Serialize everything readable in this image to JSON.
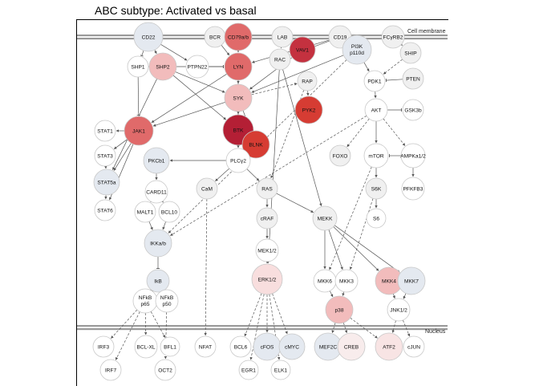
{
  "title": "ABC subtype: Activated vs basal",
  "compartments": {
    "membrane": "Cell membrane",
    "nucleus": "Nucleus"
  },
  "colors": {
    "node_default": "#f0f0f0",
    "node_stroke": "#c8c8c8",
    "edge": "#555555",
    "membrane": "#9a9a9a",
    "up_dark": "#b41f35",
    "up_mid": "#e06a6a",
    "up_light": "#f2bcbc",
    "down_light": "#e4e9f0"
  },
  "nodes": [
    {
      "id": "CD22",
      "label": "CD22",
      "fill": "#e4e9f0"
    },
    {
      "id": "BCR",
      "label": "BCR",
      "fill": "#f0f0f0"
    },
    {
      "id": "CD79ab",
      "label": "CD79a/b",
      "fill": "#e06a6a"
    },
    {
      "id": "LAB",
      "label": "LAB",
      "fill": "#f0f0f0"
    },
    {
      "id": "VAV1",
      "label": "VAV1",
      "fill": "#c4313f"
    },
    {
      "id": "CD19",
      "label": "CD19",
      "fill": "#f0f0f0"
    },
    {
      "id": "PI3K",
      "label": "PI3K\np110d",
      "fill": "#e4e9f0"
    },
    {
      "id": "FCGRB2",
      "label": "FCγRB2",
      "fill": "#f0f0f0"
    },
    {
      "id": "SHP1",
      "label": "SHP1",
      "fill": "#ffffff"
    },
    {
      "id": "SHP2",
      "label": "SHP2",
      "fill": "#f2bcbc"
    },
    {
      "id": "PTPN22",
      "label": "PTPN22",
      "fill": "#ffffff"
    },
    {
      "id": "LYN",
      "label": "LYN",
      "fill": "#e06a6a"
    },
    {
      "id": "RAC",
      "label": "RAC",
      "fill": "#f0f0f0"
    },
    {
      "id": "SHIP",
      "label": "SHIP",
      "fill": "#f0f0f0"
    },
    {
      "id": "RAP",
      "label": "RAP",
      "fill": "#f0f0f0"
    },
    {
      "id": "PDK1",
      "label": "PDK1",
      "fill": "#ffffff"
    },
    {
      "id": "PTEN",
      "label": "PTEN",
      "fill": "#f0f0f0"
    },
    {
      "id": "SYK",
      "label": "SYK",
      "fill": "#f2bcbc"
    },
    {
      "id": "PYK2",
      "label": "PYK2",
      "fill": "#d63c33"
    },
    {
      "id": "AKT",
      "label": "AKT",
      "fill": "#ffffff"
    },
    {
      "id": "GSK3b",
      "label": "GSK3b",
      "fill": "#ffffff"
    },
    {
      "id": "STAT1",
      "label": "STAT1",
      "fill": "#ffffff"
    },
    {
      "id": "JAK1",
      "label": "JAK1",
      "fill": "#e06a6a"
    },
    {
      "id": "BTK",
      "label": "BTK",
      "fill": "#b41f35"
    },
    {
      "id": "BLNK",
      "label": "BLNK",
      "fill": "#d63c33"
    },
    {
      "id": "STAT3",
      "label": "STAT3",
      "fill": "#ffffff"
    },
    {
      "id": "PKCb1",
      "label": "PKCb1",
      "fill": "#e4e9f0"
    },
    {
      "id": "PLCy2",
      "label": "PLCγ2",
      "fill": "#ffffff"
    },
    {
      "id": "FOXO",
      "label": "FOXO",
      "fill": "#f0f0f0"
    },
    {
      "id": "mTOR",
      "label": "mTOR",
      "fill": "#ffffff"
    },
    {
      "id": "AMPKa12",
      "label": "AMPKa1/2",
      "fill": "#ffffff"
    },
    {
      "id": "STAT5a",
      "label": "STAT5a",
      "fill": "#e4e9f0"
    },
    {
      "id": "CARD11",
      "label": "CARD11",
      "fill": "#ffffff"
    },
    {
      "id": "CaM",
      "label": "CaM",
      "fill": "#f0f0f0"
    },
    {
      "id": "RAS",
      "label": "RAS",
      "fill": "#f0f0f0"
    },
    {
      "id": "S6K",
      "label": "S6K",
      "fill": "#f0f0f0"
    },
    {
      "id": "PFKFB3",
      "label": "PFKFB3",
      "fill": "#ffffff"
    },
    {
      "id": "STAT6",
      "label": "STAT6",
      "fill": "#ffffff"
    },
    {
      "id": "MALT1",
      "label": "MALT1",
      "fill": "#ffffff"
    },
    {
      "id": "BCL10",
      "label": "BCL10",
      "fill": "#ffffff"
    },
    {
      "id": "cRAF",
      "label": "cRAF",
      "fill": "#f0f0f0"
    },
    {
      "id": "MEKK",
      "label": "MEKK",
      "fill": "#f0f0f0"
    },
    {
      "id": "S6",
      "label": "S6",
      "fill": "#ffffff"
    },
    {
      "id": "IKKab",
      "label": "IKKa/b",
      "fill": "#e4e9f0"
    },
    {
      "id": "MEK12",
      "label": "MEK1/2",
      "fill": "#ffffff"
    },
    {
      "id": "ERK12",
      "label": "ERK1/2",
      "fill": "#f8dede"
    },
    {
      "id": "MKK6",
      "label": "MKK6",
      "fill": "#ffffff"
    },
    {
      "id": "MKK3",
      "label": "MKK3",
      "fill": "#ffffff"
    },
    {
      "id": "MKK4",
      "label": "MKK4",
      "fill": "#f2bcbc"
    },
    {
      "id": "MKK7",
      "label": "MKK7",
      "fill": "#e4e9f0"
    },
    {
      "id": "IkB",
      "label": "IkB",
      "fill": "#e4e9f0"
    },
    {
      "id": "NFkBp65",
      "label": "NFkB\np65",
      "fill": "#ffffff"
    },
    {
      "id": "NFkBp50",
      "label": "NFkB\np50",
      "fill": "#ffffff"
    },
    {
      "id": "p38",
      "label": "p38",
      "fill": "#f2bcbc"
    },
    {
      "id": "JNK12",
      "label": "JNK1/2",
      "fill": "#ffffff"
    },
    {
      "id": "IRF3",
      "label": "IRF3",
      "fill": "#ffffff"
    },
    {
      "id": "BCLXL",
      "label": "BCL-XL",
      "fill": "#ffffff"
    },
    {
      "id": "BFL1",
      "label": "BFL1",
      "fill": "#ffffff"
    },
    {
      "id": "NFAT",
      "label": "NFAT",
      "fill": "#ffffff"
    },
    {
      "id": "BCL6",
      "label": "BCL6",
      "fill": "#ffffff"
    },
    {
      "id": "cFOS",
      "label": "cFOS",
      "fill": "#e4e9f0"
    },
    {
      "id": "cMYC",
      "label": "cMYC",
      "fill": "#e4e9f0"
    },
    {
      "id": "MEF2C",
      "label": "MEF2C",
      "fill": "#e4e9f0"
    },
    {
      "id": "CREB",
      "label": "CREB",
      "fill": "#f8ecec"
    },
    {
      "id": "ATF2",
      "label": "ATF2",
      "fill": "#f8e4e4"
    },
    {
      "id": "cJUN",
      "label": "cJUN",
      "fill": "#ffffff"
    },
    {
      "id": "IRF7",
      "label": "IRF7",
      "fill": "#ffffff"
    },
    {
      "id": "OCT2",
      "label": "OCT2",
      "fill": "#ffffff"
    },
    {
      "id": "EGR1",
      "label": "EGR1",
      "fill": "#ffffff"
    },
    {
      "id": "ELK1",
      "label": "ELK1",
      "fill": "#ffffff"
    }
  ],
  "edges": [
    [
      "CD22",
      "SHP1",
      "inhibit",
      "solid"
    ],
    [
      "CD22",
      "SHP2",
      "act",
      "solid"
    ],
    [
      "BCR",
      "LYN",
      "act",
      "solid"
    ],
    [
      "CD79ab",
      "LYN",
      "act",
      "solid"
    ],
    [
      "LYN",
      "SYK",
      "act",
      "solid"
    ],
    [
      "SYK",
      "BTK",
      "act",
      "solid"
    ],
    [
      "SYK",
      "BLNK",
      "act",
      "solid"
    ],
    [
      "BTK",
      "PLCy2",
      "act",
      "solid"
    ],
    [
      "BLNK",
      "PLCy2",
      "act",
      "solid"
    ],
    [
      "SHP1",
      "LYN",
      "inhibit",
      "solid"
    ],
    [
      "SHP1",
      "JAK1",
      "inhibit",
      "solid"
    ],
    [
      "SHP2",
      "SYK",
      "act",
      "solid"
    ],
    [
      "PTPN22",
      "LYN",
      "inhibit",
      "solid"
    ],
    [
      "LAB",
      "RAC",
      "act",
      "solid"
    ],
    [
      "VAV1",
      "RAC",
      "act",
      "solid"
    ],
    [
      "CD19",
      "PI3K",
      "act",
      "solid"
    ],
    [
      "PI3K",
      "PDK1",
      "act",
      "solid"
    ],
    [
      "FCGRB2",
      "SHIP",
      "act",
      "dashed"
    ],
    [
      "SHIP",
      "PDK1",
      "act",
      "dashed"
    ],
    [
      "PTEN",
      "PDK1",
      "inhibit",
      "solid"
    ],
    [
      "PDK1",
      "AKT",
      "act",
      "solid"
    ],
    [
      "AKT",
      "GSK3b",
      "inhibit",
      "solid"
    ],
    [
      "AKT",
      "FOXO",
      "act",
      "dashed"
    ],
    [
      "AKT",
      "mTOR",
      "act",
      "solid"
    ],
    [
      "AKT",
      "AMPKa12",
      "act",
      "dashed"
    ],
    [
      "AMPKa12",
      "mTOR",
      "inhibit",
      "solid"
    ],
    [
      "mTOR",
      "S6K",
      "act",
      "solid"
    ],
    [
      "S6K",
      "S6",
      "act",
      "solid"
    ],
    [
      "AMPKa12",
      "PFKFB3",
      "act",
      "solid"
    ],
    [
      "RAP",
      "PYK2",
      "act",
      "solid"
    ],
    [
      "JAK1",
      "STAT1",
      "act",
      "solid"
    ],
    [
      "JAK1",
      "STAT3",
      "act",
      "solid"
    ],
    [
      "JAK1",
      "STAT5a",
      "act",
      "solid"
    ],
    [
      "JAK1",
      "STAT6",
      "act",
      "solid"
    ],
    [
      "STAT3",
      "STAT5a",
      "act",
      "solid"
    ],
    [
      "STAT5a",
      "STAT6",
      "act",
      "solid"
    ],
    [
      "PLCy2",
      "PKCb1",
      "act",
      "solid"
    ],
    [
      "PLCy2",
      "CaM",
      "act",
      "solid"
    ],
    [
      "PLCy2",
      "RAS",
      "act",
      "solid"
    ],
    [
      "PKCb1",
      "CARD11",
      "act",
      "solid"
    ],
    [
      "CARD11",
      "MALT1",
      "act",
      "solid"
    ],
    [
      "CARD11",
      "BCL10",
      "act",
      "solid"
    ],
    [
      "MALT1",
      "IKKab",
      "act",
      "solid"
    ],
    [
      "BCL10",
      "IKKab",
      "act",
      "solid"
    ],
    [
      "IKKab",
      "IkB",
      "inhibit",
      "solid"
    ],
    [
      "IkB",
      "NFkBp65",
      "inhibit",
      "solid"
    ],
    [
      "IkB",
      "NFkBp50",
      "inhibit",
      "solid"
    ],
    [
      "NFkBp65",
      "IRF3",
      "act",
      "dashed"
    ],
    [
      "NFkBp65",
      "BCLXL",
      "act",
      "dashed"
    ],
    [
      "NFkBp65",
      "BFL1",
      "act",
      "dashed"
    ],
    [
      "NFkBp50",
      "OCT2",
      "act",
      "dashed"
    ],
    [
      "NFkBp65",
      "IRF7",
      "act",
      "dashed"
    ],
    [
      "CaM",
      "NFAT",
      "act",
      "dashed"
    ],
    [
      "RAS",
      "cRAF",
      "act",
      "solid"
    ],
    [
      "RAS",
      "MEKK",
      "act",
      "solid"
    ],
    [
      "cRAF",
      "MEK12",
      "act",
      "solid"
    ],
    [
      "MEK12",
      "ERK12",
      "act",
      "solid"
    ],
    [
      "ERK12",
      "BCL6",
      "act",
      "dashed"
    ],
    [
      "ERK12",
      "cFOS",
      "act",
      "dashed"
    ],
    [
      "ERK12",
      "cMYC",
      "act",
      "dashed"
    ],
    [
      "ERK12",
      "EGR1",
      "act",
      "dashed"
    ],
    [
      "ERK12",
      "ELK1",
      "act",
      "dashed"
    ],
    [
      "MEKK",
      "MKK6",
      "act",
      "solid"
    ],
    [
      "MEKK",
      "MKK3",
      "act",
      "solid"
    ],
    [
      "MEKK",
      "MKK4",
      "act",
      "solid"
    ],
    [
      "MEKK",
      "MKK7",
      "act",
      "solid"
    ],
    [
      "MKK6",
      "p38",
      "act",
      "solid"
    ],
    [
      "MKK3",
      "p38",
      "act",
      "solid"
    ],
    [
      "MKK4",
      "JNK12",
      "act",
      "solid"
    ],
    [
      "MKK7",
      "JNK12",
      "act",
      "solid"
    ],
    [
      "p38",
      "MEF2C",
      "act",
      "dashed"
    ],
    [
      "p38",
      "CREB",
      "act",
      "dashed"
    ],
    [
      "p38",
      "ATF2",
      "act",
      "dashed"
    ],
    [
      "JNK12",
      "ATF2",
      "act",
      "dashed"
    ],
    [
      "JNK12",
      "cJUN",
      "act",
      "dashed"
    ],
    [
      "PI3K",
      "IKKab",
      "act",
      "dashed"
    ],
    [
      "AKT",
      "IKKab",
      "act",
      "dashed"
    ],
    [
      "RAC",
      "ERK12",
      "act",
      "solid"
    ],
    [
      "RAC",
      "MEKK",
      "act",
      "solid"
    ],
    [
      "SYK",
      "JAK1",
      "act",
      "solid"
    ],
    [
      "LYN",
      "JAK1",
      "act",
      "solid"
    ],
    [
      "LYN",
      "PLCy2",
      "act",
      "solid"
    ],
    [
      "SYK",
      "RAP",
      "act",
      "dashed"
    ],
    [
      "RAP",
      "RAS",
      "act",
      "dashed"
    ],
    [
      "mTOR",
      "MKK6",
      "act",
      "dashed"
    ],
    [
      "S6K",
      "MKK3",
      "act",
      "dashed"
    ],
    [
      "SHP2",
      "STAT5a",
      "act",
      "solid"
    ],
    [
      "SHP2",
      "BTK",
      "act",
      "solid"
    ],
    [
      "CD22",
      "PTPN22",
      "act",
      "solid"
    ],
    [
      "CD19",
      "RAC",
      "act",
      "solid"
    ],
    [
      "VAV1",
      "SYK",
      "act",
      "solid"
    ],
    [
      "PI3K",
      "SYK",
      "act",
      "solid"
    ],
    [
      "CD19",
      "LYN",
      "act",
      "solid"
    ]
  ]
}
